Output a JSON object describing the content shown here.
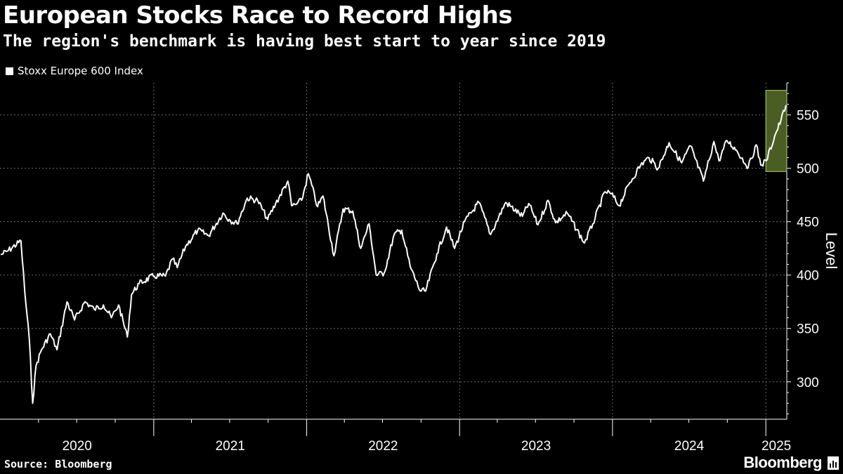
{
  "chart_data": {
    "type": "line",
    "title": "European Stocks Race to Record Highs",
    "subtitle": "The region's benchmark is having best start to year since 2019",
    "ylabel": "Level",
    "xlabel": "",
    "ylim": [
      265,
      580
    ],
    "yticks": [
      300,
      350,
      400,
      450,
      500,
      550
    ],
    "xlim": [
      "2019-12-31",
      "2025-02-20"
    ],
    "x_ticks": [
      {
        "label": "2020",
        "start": "2020-01-01",
        "end": "2021-01-01"
      },
      {
        "label": "2021",
        "start": "2021-01-01",
        "end": "2022-01-01"
      },
      {
        "label": "2022",
        "start": "2022-01-01",
        "end": "2023-01-01"
      },
      {
        "label": "2023",
        "start": "2023-01-01",
        "end": "2024-01-01"
      },
      {
        "label": "2024",
        "start": "2024-01-01",
        "end": "2025-01-01"
      },
      {
        "label": "2025",
        "start": "2025-01-01",
        "end": "2025-02-20"
      }
    ],
    "grid": true,
    "legend_position": "top-left",
    "highlight": {
      "x_start": "2025-01-01",
      "x_end": "2025-02-20",
      "y_start": 497,
      "y_end": 573,
      "color": "#4a5e23",
      "border": "#b6d26b"
    },
    "series": [
      {
        "name": "Stoxx Europe 600 Index",
        "color": "#ffffff",
        "points": [
          [
            "2020-01-02",
            419
          ],
          [
            "2020-01-20",
            423
          ],
          [
            "2020-02-19",
            432
          ],
          [
            "2020-02-28",
            385
          ],
          [
            "2020-03-10",
            340
          ],
          [
            "2020-03-18",
            280
          ],
          [
            "2020-03-26",
            315
          ],
          [
            "2020-04-08",
            330
          ],
          [
            "2020-04-29",
            345
          ],
          [
            "2020-05-15",
            330
          ],
          [
            "2020-06-08",
            375
          ],
          [
            "2020-06-26",
            358
          ],
          [
            "2020-07-21",
            375
          ],
          [
            "2020-08-12",
            368
          ],
          [
            "2020-09-03",
            372
          ],
          [
            "2020-09-22",
            360
          ],
          [
            "2020-10-09",
            372
          ],
          [
            "2020-10-30",
            342
          ],
          [
            "2020-11-09",
            382
          ],
          [
            "2020-11-27",
            392
          ],
          [
            "2020-12-31",
            399
          ],
          [
            "2021-01-29",
            399
          ],
          [
            "2021-02-15",
            415
          ],
          [
            "2021-02-26",
            407
          ],
          [
            "2021-03-18",
            427
          ],
          [
            "2021-04-16",
            442
          ],
          [
            "2021-05-12",
            437
          ],
          [
            "2021-06-15",
            458
          ],
          [
            "2021-06-30",
            452
          ],
          [
            "2021-07-19",
            448
          ],
          [
            "2021-08-12",
            472
          ],
          [
            "2021-09-06",
            470
          ],
          [
            "2021-09-30",
            452
          ],
          [
            "2021-10-19",
            467
          ],
          [
            "2021-11-17",
            488
          ],
          [
            "2021-11-26",
            465
          ],
          [
            "2021-12-06",
            466
          ],
          [
            "2021-12-20",
            470
          ],
          [
            "2022-01-05",
            495
          ],
          [
            "2022-01-27",
            464
          ],
          [
            "2022-02-09",
            474
          ],
          [
            "2022-03-07",
            418
          ],
          [
            "2022-03-29",
            462
          ],
          [
            "2022-04-21",
            460
          ],
          [
            "2022-05-10",
            425
          ],
          [
            "2022-05-30",
            448
          ],
          [
            "2022-06-16",
            400
          ],
          [
            "2022-07-05",
            402
          ],
          [
            "2022-07-29",
            438
          ],
          [
            "2022-08-16",
            442
          ],
          [
            "2022-09-05",
            408
          ],
          [
            "2022-09-29",
            385
          ],
          [
            "2022-10-12",
            385
          ],
          [
            "2022-11-08",
            420
          ],
          [
            "2022-12-01",
            445
          ],
          [
            "2022-12-20",
            425
          ],
          [
            "2023-01-13",
            450
          ],
          [
            "2023-02-16",
            468
          ],
          [
            "2023-03-16",
            438
          ],
          [
            "2023-04-21",
            468
          ],
          [
            "2023-05-31",
            455
          ],
          [
            "2023-06-15",
            467
          ],
          [
            "2023-07-07",
            447
          ],
          [
            "2023-07-31",
            470
          ],
          [
            "2023-08-18",
            449
          ],
          [
            "2023-09-15",
            458
          ],
          [
            "2023-10-26",
            430
          ],
          [
            "2023-11-15",
            448
          ],
          [
            "2023-12-14",
            478
          ],
          [
            "2023-12-29",
            476
          ],
          [
            "2024-01-17",
            465
          ],
          [
            "2024-02-09",
            485
          ],
          [
            "2024-03-08",
            503
          ],
          [
            "2024-03-28",
            510
          ],
          [
            "2024-04-19",
            500
          ],
          [
            "2024-05-15",
            524
          ],
          [
            "2024-06-14",
            505
          ],
          [
            "2024-07-05",
            521
          ],
          [
            "2024-08-05",
            488
          ],
          [
            "2024-08-30",
            525
          ],
          [
            "2024-09-11",
            507
          ],
          [
            "2024-09-30",
            526
          ],
          [
            "2024-10-23",
            517
          ],
          [
            "2024-11-20",
            501
          ],
          [
            "2024-12-09",
            522
          ],
          [
            "2024-12-20",
            503
          ],
          [
            "2025-01-02",
            507
          ],
          [
            "2025-01-22",
            530
          ],
          [
            "2025-02-06",
            545
          ],
          [
            "2025-02-18",
            559
          ]
        ]
      }
    ]
  },
  "footer": {
    "source": "Source: Bloomberg",
    "brand": "Bloomberg"
  }
}
